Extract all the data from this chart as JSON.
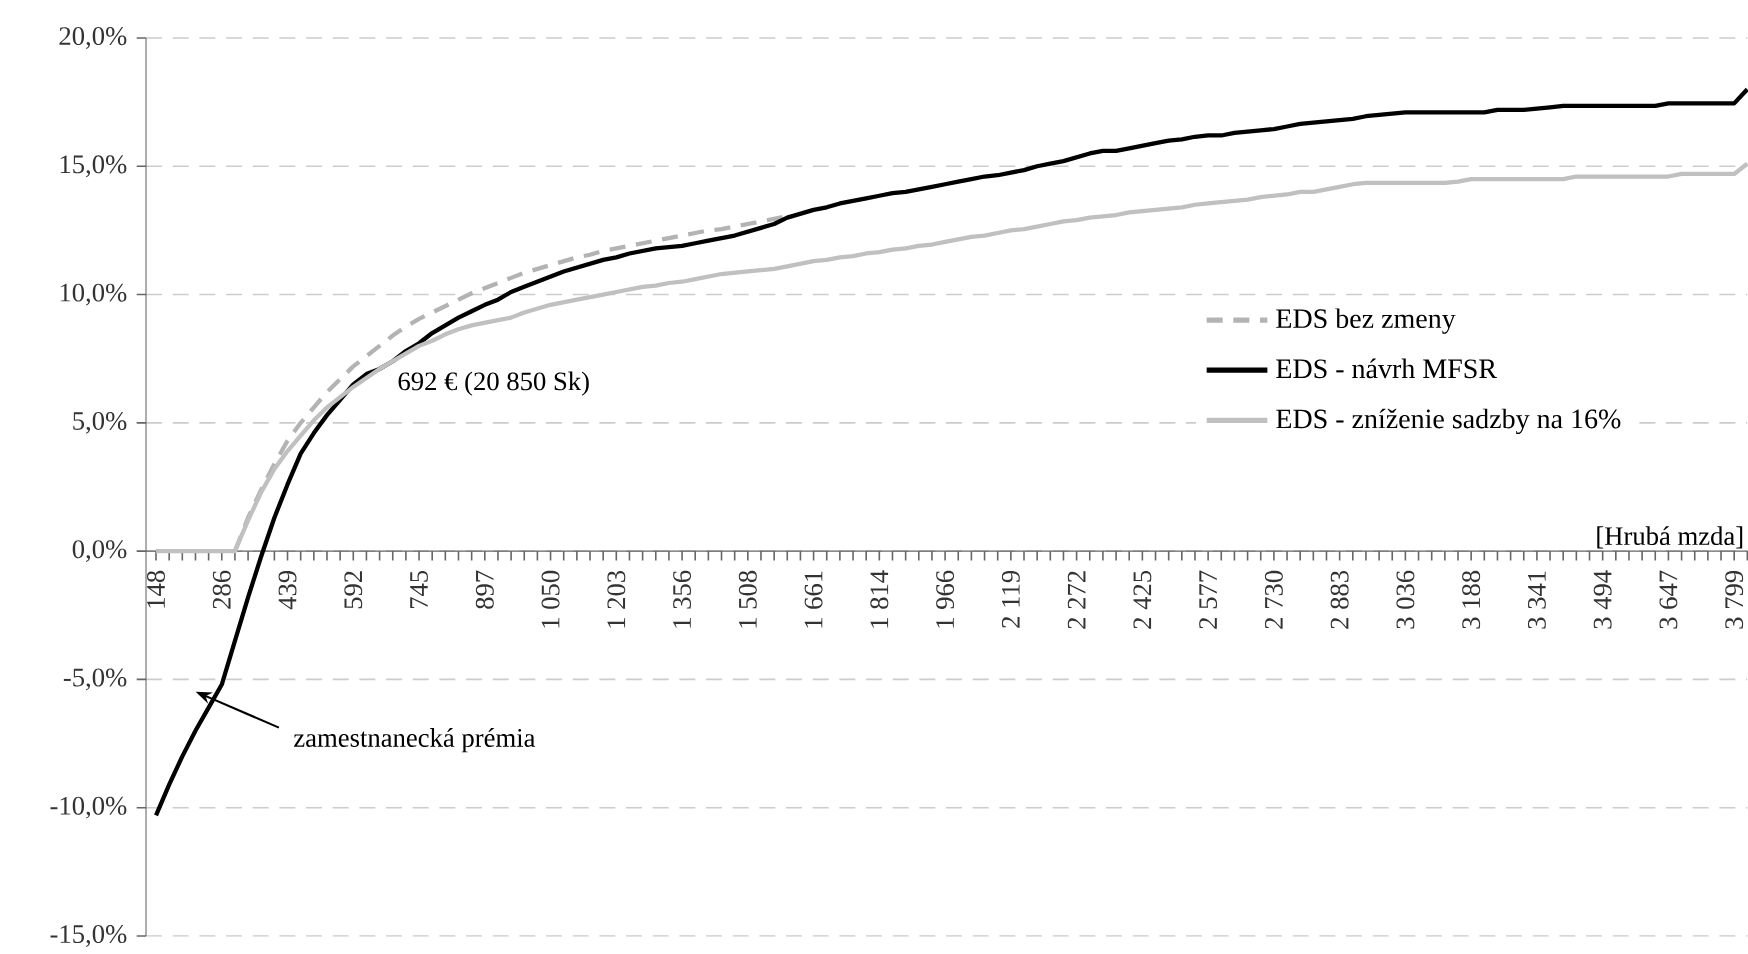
{
  "chart_data": {
    "type": "line",
    "xlabel": "[Hrubá mzda]",
    "categories": [
      "148",
      null,
      null,
      null,
      null,
      "286",
      null,
      null,
      null,
      null,
      "439",
      null,
      null,
      null,
      null,
      "592",
      null,
      null,
      null,
      null,
      "745",
      null,
      null,
      null,
      null,
      "897",
      null,
      null,
      null,
      null,
      "1 050",
      null,
      null,
      null,
      null,
      "1 203",
      null,
      null,
      null,
      null,
      "1 356",
      null,
      null,
      null,
      null,
      "1 508",
      null,
      null,
      null,
      null,
      "1 661",
      null,
      null,
      null,
      null,
      "1 814",
      null,
      null,
      null,
      null,
      "1 966",
      null,
      null,
      null,
      null,
      "2 119",
      null,
      null,
      null,
      null,
      "2 272",
      null,
      null,
      null,
      null,
      "2 425",
      null,
      null,
      null,
      null,
      "2 577",
      null,
      null,
      null,
      null,
      "2 730",
      null,
      null,
      null,
      null,
      "2 883",
      null,
      null,
      null,
      null,
      "3 036",
      null,
      null,
      null,
      null,
      "3 188",
      null,
      null,
      null,
      null,
      "3 341",
      null,
      null,
      null,
      null,
      "3 494",
      null,
      null,
      null,
      null,
      "3 647",
      null,
      null,
      null,
      null,
      "3 799",
      null
    ],
    "series": [
      {
        "name": "EDS bez zmeny",
        "color": "#b3b3b3",
        "line_style": "dashed",
        "values": [
          null,
          null,
          null,
          null,
          null,
          null,
          0.0,
          1.3,
          2.4,
          3.4,
          4.3,
          5.0,
          5.6,
          6.2,
          6.7,
          7.2,
          7.6,
          8.0,
          8.4,
          8.75,
          9.05,
          9.3,
          9.55,
          9.8,
          10.05,
          10.25,
          10.45,
          10.65,
          10.85,
          11.0,
          11.15,
          11.3,
          11.45,
          11.55,
          11.7,
          11.8,
          11.9,
          12.0,
          12.1,
          12.2,
          12.3,
          12.4,
          12.5,
          12.55,
          12.65,
          12.75,
          12.85,
          12.95,
          13.05,
          null,
          null,
          null,
          null,
          null,
          null,
          null,
          null,
          null,
          null,
          null,
          null,
          null,
          null,
          null,
          null,
          null,
          null,
          null,
          null,
          null,
          null,
          null,
          null,
          null,
          null,
          null,
          null,
          null,
          null,
          null,
          null,
          null,
          null,
          null,
          null,
          null,
          null,
          null,
          null,
          null,
          null,
          null,
          null,
          null,
          null,
          null,
          null,
          null,
          null,
          null,
          null,
          null,
          null,
          null,
          null,
          null,
          null,
          null,
          null,
          null,
          null,
          null,
          null,
          null,
          null,
          null,
          null,
          null,
          null,
          null,
          null,
          null
        ]
      },
      {
        "name": "EDS - návrh MFSR",
        "color": "#000000",
        "line_style": "solid",
        "values": [
          -10.3,
          -9.1,
          -8.0,
          -7.0,
          -6.1,
          -5.2,
          -3.5,
          -1.8,
          -0.2,
          1.3,
          2.6,
          3.8,
          4.6,
          5.3,
          5.9,
          6.5,
          6.9,
          7.1,
          7.4,
          7.8,
          8.1,
          8.5,
          8.8,
          9.1,
          9.35,
          9.6,
          9.8,
          10.1,
          10.3,
          10.5,
          10.7,
          10.9,
          11.05,
          11.2,
          11.35,
          11.45,
          11.6,
          11.7,
          11.8,
          11.85,
          11.9,
          12.0,
          12.1,
          12.2,
          12.3,
          12.45,
          12.6,
          12.75,
          13.0,
          13.15,
          13.3,
          13.4,
          13.55,
          13.65,
          13.75,
          13.85,
          13.95,
          14.0,
          14.1,
          14.2,
          14.3,
          14.4,
          14.5,
          14.6,
          14.65,
          14.75,
          14.85,
          15.0,
          15.1,
          15.2,
          15.35,
          15.5,
          15.6,
          15.6,
          15.7,
          15.8,
          15.9,
          16.0,
          16.05,
          16.15,
          16.2,
          16.2,
          16.3,
          16.35,
          16.4,
          16.45,
          16.55,
          16.65,
          16.7,
          16.75,
          16.8,
          16.85,
          16.95,
          17.0,
          17.05,
          17.1,
          17.1,
          17.1,
          17.1,
          17.1,
          17.1,
          17.1,
          17.2,
          17.2,
          17.2,
          17.25,
          17.3,
          17.35,
          17.35,
          17.35,
          17.35,
          17.35,
          17.35,
          17.35,
          17.35,
          17.45,
          17.45,
          17.45,
          17.45,
          17.45,
          17.45,
          18.0
        ]
      },
      {
        "name": "EDS - zníženie sadzby na 16%",
        "color": "#c0c0c0",
        "line_style": "solid",
        "values": [
          0,
          0,
          0,
          0,
          0,
          0,
          0,
          1.2,
          2.3,
          3.2,
          3.9,
          4.5,
          5.1,
          5.6,
          6.0,
          6.4,
          6.75,
          7.1,
          7.4,
          7.7,
          8.0,
          8.2,
          8.45,
          8.65,
          8.8,
          8.9,
          9.0,
          9.1,
          9.3,
          9.45,
          9.6,
          9.7,
          9.8,
          9.9,
          10.0,
          10.1,
          10.2,
          10.3,
          10.35,
          10.45,
          10.5,
          10.6,
          10.7,
          10.8,
          10.85,
          10.9,
          10.95,
          11.0,
          11.1,
          11.2,
          11.3,
          11.35,
          11.45,
          11.5,
          11.6,
          11.65,
          11.75,
          11.8,
          11.9,
          11.95,
          12.05,
          12.15,
          12.25,
          12.3,
          12.4,
          12.5,
          12.55,
          12.65,
          12.75,
          12.85,
          12.9,
          13.0,
          13.05,
          13.1,
          13.2,
          13.25,
          13.3,
          13.35,
          13.4,
          13.5,
          13.55,
          13.6,
          13.65,
          13.7,
          13.8,
          13.85,
          13.9,
          14.0,
          14.0,
          14.1,
          14.2,
          14.3,
          14.35,
          14.35,
          14.35,
          14.35,
          14.35,
          14.35,
          14.35,
          14.4,
          14.5,
          14.5,
          14.5,
          14.5,
          14.5,
          14.5,
          14.5,
          14.5,
          14.6,
          14.6,
          14.6,
          14.6,
          14.6,
          14.6,
          14.6,
          14.6,
          14.7,
          14.7,
          14.7,
          14.7,
          14.7,
          15.1
        ]
      }
    ],
    "ylim": [
      -15,
      20
    ],
    "yticks": [
      {
        "value": -15,
        "label": "-15,0%"
      },
      {
        "value": -10,
        "label": "-10,0%"
      },
      {
        "value": -5,
        "label": "-5,0%"
      },
      {
        "value": 0,
        "label": "0,0%"
      },
      {
        "value": 5,
        "label": "5,0%"
      },
      {
        "value": 10,
        "label": "10,0%"
      },
      {
        "value": 15,
        "label": "15,0%"
      },
      {
        "value": 20,
        "label": "20,0%"
      }
    ],
    "grid": "y",
    "legend": "right",
    "marker": "none",
    "annotations": [
      "692 € (20 850 Sk)",
      "zamestnanecká prémia"
    ]
  }
}
